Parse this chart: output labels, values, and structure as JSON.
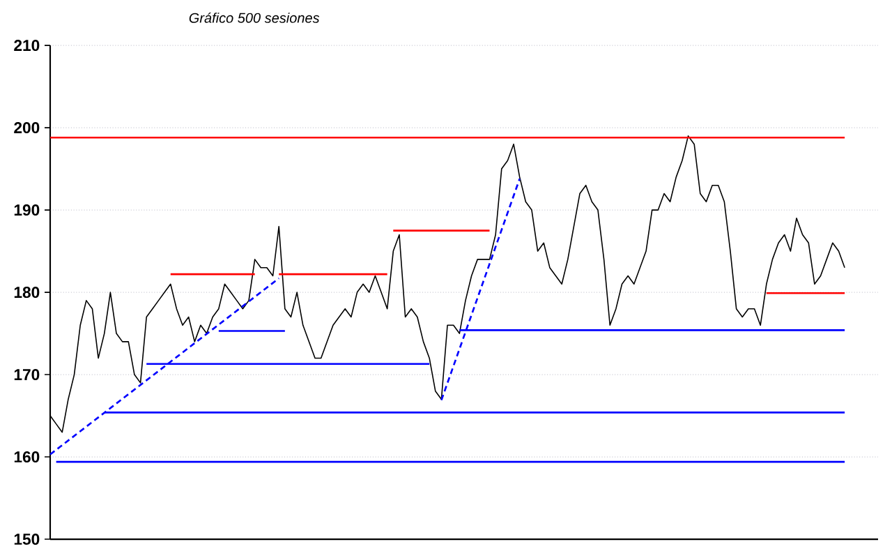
{
  "chart_data": {
    "type": "line",
    "subtitle": "Gráfico 500 sesiones",
    "ylim": [
      150,
      210
    ],
    "yticks": [
      150,
      160,
      170,
      180,
      190,
      200,
      210
    ],
    "grid": "y",
    "tick_labels": "y",
    "categories": [
      null,
      null,
      null,
      null,
      null,
      null,
      null,
      null,
      null,
      null,
      null,
      null,
      null,
      null,
      null,
      null,
      null,
      null,
      null,
      null,
      null,
      null,
      null,
      null,
      null,
      null,
      null,
      null,
      null,
      null,
      null,
      null,
      null,
      null,
      null,
      null,
      null,
      null,
      null,
      null,
      null,
      null,
      null,
      null,
      null,
      null,
      null,
      null,
      null,
      null,
      null,
      null,
      null,
      null,
      null,
      null,
      null,
      null,
      null,
      null,
      null,
      null,
      null,
      null,
      null,
      null,
      null,
      null,
      null,
      null,
      null,
      null,
      null,
      null,
      null,
      null,
      null,
      null,
      null,
      null,
      null,
      null,
      null,
      null,
      null,
      null,
      null,
      null,
      null,
      null,
      null,
      null,
      null,
      null,
      null,
      null,
      null,
      null,
      null,
      null,
      null,
      null,
      null,
      null,
      null,
      null,
      null,
      null,
      null,
      null,
      null,
      null,
      null,
      null,
      null,
      null,
      null,
      null,
      null,
      null,
      null,
      null,
      null,
      null,
      null,
      null,
      null,
      null,
      null,
      null,
      null,
      null,
      null
    ],
    "series": [
      {
        "color": "#000000",
        "values": [
          165,
          164,
          163,
          167,
          170,
          176,
          179,
          178,
          172,
          175,
          180,
          175,
          174,
          174,
          170,
          169,
          177,
          178,
          179,
          180,
          181,
          178,
          176,
          177,
          174,
          176,
          175,
          177,
          178,
          181,
          180,
          179,
          178,
          179,
          184,
          183,
          183,
          182,
          188,
          178,
          177,
          180,
          176,
          174,
          172,
          172,
          174,
          176,
          177,
          178,
          177,
          180,
          181,
          180,
          182,
          180,
          178,
          185,
          187,
          177,
          178,
          177,
          174,
          172,
          168,
          167,
          176,
          176,
          175,
          179,
          182,
          184,
          184,
          184,
          187,
          195,
          196,
          198,
          194,
          191,
          190,
          185,
          186,
          183,
          182,
          181,
          184,
          188,
          192,
          193,
          191,
          190,
          184,
          176,
          178,
          181,
          182,
          181,
          183,
          185,
          190,
          190,
          192,
          191,
          194,
          196,
          199,
          198,
          192,
          191,
          193,
          193,
          191,
          185,
          178,
          177,
          178,
          178,
          176,
          181,
          184,
          186,
          187,
          185,
          189,
          187,
          186,
          181,
          182,
          184,
          186,
          185,
          183
        ]
      },
      {
        "color": "#ff0000",
        "values": [
          198.8,
          null,
          null,
          null,
          null,
          null,
          null,
          null,
          null,
          null,
          null,
          null,
          null,
          null,
          null,
          null,
          null,
          null,
          null,
          null,
          null,
          null,
          null,
          null,
          null,
          null,
          null,
          null,
          null,
          null,
          null,
          null,
          null,
          null,
          null,
          null,
          null,
          null,
          null,
          null,
          null,
          null,
          null,
          null,
          null,
          null,
          null,
          null,
          null,
          null,
          null,
          null,
          null,
          null,
          null,
          null,
          null,
          null,
          null,
          null,
          null,
          null,
          null,
          null,
          null,
          null,
          null,
          null,
          null,
          null,
          null,
          null,
          null,
          null,
          null,
          null,
          null,
          null,
          null,
          null,
          null,
          null,
          null,
          null,
          null,
          null,
          null,
          null,
          null,
          null,
          null,
          null,
          null,
          null,
          null,
          null,
          null,
          null,
          null,
          null,
          null,
          null,
          null,
          null,
          null,
          null,
          null,
          null,
          null,
          null,
          null,
          null,
          null,
          null,
          null,
          null,
          null,
          null,
          null,
          null,
          null,
          null,
          null,
          null,
          null,
          null,
          null,
          null,
          null,
          null,
          null,
          null,
          198.8
        ]
      },
      {
        "color": "#ff0000",
        "values": [
          null,
          null,
          null,
          null,
          null,
          null,
          null,
          null,
          null,
          null,
          null,
          null,
          null,
          null,
          null,
          null,
          null,
          null,
          null,
          null,
          182.2,
          null,
          null,
          null,
          null,
          null,
          null,
          null,
          null,
          null,
          null,
          null,
          null,
          null,
          182.2,
          null,
          null,
          null,
          null,
          null,
          null,
          null,
          null,
          null,
          null,
          null,
          null,
          null,
          null,
          null,
          null,
          null,
          null,
          null,
          null,
          null,
          null,
          null,
          null,
          null,
          null,
          null,
          null,
          null,
          null,
          null,
          null,
          null,
          null,
          null,
          null,
          null,
          null,
          null,
          null,
          null,
          null,
          null,
          null,
          null,
          null,
          null,
          null,
          null,
          null,
          null,
          null,
          null,
          null,
          null,
          null,
          null,
          null,
          null,
          null,
          null,
          null,
          null,
          null,
          null,
          null,
          null,
          null,
          null,
          null,
          null,
          null,
          null,
          null,
          null,
          null,
          null,
          null,
          null,
          null,
          null,
          null,
          null,
          null,
          null,
          null,
          null,
          null,
          null,
          null,
          null,
          null,
          null,
          null,
          null,
          null,
          null,
          null
        ]
      },
      {
        "color": "#ff0000",
        "values": [
          null,
          null,
          null,
          null,
          null,
          null,
          null,
          null,
          null,
          null,
          null,
          null,
          null,
          null,
          null,
          null,
          null,
          null,
          null,
          null,
          null,
          null,
          null,
          null,
          null,
          null,
          null,
          null,
          null,
          null,
          null,
          null,
          null,
          null,
          null,
          null,
          null,
          null,
          182.2,
          null,
          null,
          null,
          null,
          null,
          null,
          null,
          null,
          null,
          null,
          null,
          null,
          null,
          null,
          null,
          null,
          null,
          182.2,
          null,
          null,
          null,
          null,
          null,
          null,
          null,
          null,
          null,
          null,
          null,
          null,
          null,
          null,
          null,
          null,
          null,
          null,
          null,
          null,
          null,
          null,
          null,
          null,
          null,
          null,
          null,
          null,
          null,
          null,
          null,
          null,
          null,
          null,
          null,
          null,
          null,
          null,
          null,
          null,
          null,
          null,
          null,
          null,
          null,
          null,
          null,
          null,
          null,
          null,
          null,
          null,
          null,
          null,
          null,
          null,
          null,
          null,
          null,
          null,
          null,
          null,
          null,
          null,
          null,
          null,
          null,
          null,
          null,
          null,
          null,
          null,
          null,
          null,
          null,
          null
        ]
      },
      {
        "color": "#ff0000",
        "values": [
          null,
          null,
          null,
          null,
          null,
          null,
          null,
          null,
          null,
          null,
          null,
          null,
          null,
          null,
          null,
          null,
          null,
          null,
          null,
          null,
          null,
          null,
          null,
          null,
          null,
          null,
          null,
          null,
          null,
          null,
          null,
          null,
          null,
          null,
          null,
          null,
          null,
          null,
          null,
          null,
          null,
          null,
          null,
          null,
          null,
          null,
          null,
          null,
          null,
          null,
          null,
          null,
          null,
          null,
          null,
          null,
          null,
          187.5,
          null,
          null,
          null,
          null,
          null,
          null,
          null,
          null,
          null,
          null,
          null,
          null,
          null,
          null,
          null,
          187.5,
          null,
          null,
          null,
          null,
          null,
          null,
          null,
          null,
          null,
          null,
          null,
          null,
          null,
          null,
          null,
          null,
          null,
          null,
          null,
          null,
          null,
          null,
          null,
          null,
          null,
          null,
          null,
          null,
          null,
          null,
          null,
          null,
          null,
          null,
          null,
          null,
          null,
          null,
          null,
          null,
          null,
          null,
          null,
          null,
          null,
          null,
          null,
          null,
          null,
          null,
          null,
          null,
          null,
          null,
          null,
          null,
          null,
          null,
          null
        ]
      },
      {
        "color": "#ff0000",
        "values": [
          null,
          null,
          null,
          null,
          null,
          null,
          null,
          null,
          null,
          null,
          null,
          null,
          null,
          null,
          null,
          null,
          null,
          null,
          null,
          null,
          null,
          null,
          null,
          null,
          null,
          null,
          null,
          null,
          null,
          null,
          null,
          null,
          null,
          null,
          null,
          null,
          null,
          null,
          null,
          null,
          null,
          null,
          null,
          null,
          null,
          null,
          null,
          null,
          null,
          null,
          null,
          null,
          null,
          null,
          null,
          null,
          null,
          null,
          null,
          null,
          null,
          null,
          null,
          null,
          null,
          null,
          null,
          null,
          null,
          null,
          null,
          null,
          null,
          null,
          null,
          null,
          null,
          null,
          null,
          null,
          null,
          null,
          null,
          null,
          null,
          null,
          null,
          null,
          null,
          null,
          null,
          null,
          null,
          null,
          null,
          null,
          null,
          null,
          null,
          null,
          null,
          null,
          null,
          null,
          null,
          null,
          null,
          null,
          null,
          null,
          null,
          null,
          null,
          null,
          null,
          null,
          null,
          null,
          null,
          179.9,
          null,
          null,
          null,
          null,
          null,
          null,
          null,
          null,
          null,
          null,
          null,
          null,
          179.9
        ]
      },
      {
        "color": "#0000ff",
        "values": [
          null,
          null,
          null,
          null,
          null,
          null,
          null,
          null,
          null,
          null,
          null,
          null,
          null,
          null,
          null,
          null,
          null,
          null,
          null,
          null,
          null,
          null,
          null,
          null,
          null,
          null,
          null,
          null,
          175.3,
          null,
          null,
          null,
          null,
          null,
          null,
          null,
          null,
          null,
          null,
          175.3,
          null,
          null,
          null,
          null,
          null,
          null,
          null,
          null,
          null,
          null,
          null,
          null,
          null,
          null,
          null,
          null,
          null,
          null,
          null,
          null,
          null,
          null,
          null,
          null,
          null,
          null,
          null,
          null,
          null,
          null,
          null,
          null,
          null,
          null,
          null,
          null,
          null,
          null,
          null,
          null,
          null,
          null,
          null,
          null,
          null,
          null,
          null,
          null,
          null,
          null,
          null,
          null,
          null,
          null,
          null,
          null,
          null,
          null,
          null,
          null,
          null,
          null,
          null,
          null,
          null,
          null,
          null,
          null,
          null,
          null,
          null,
          null,
          null,
          null,
          null,
          null,
          null,
          null,
          null,
          null,
          null,
          null,
          null,
          null,
          null,
          null,
          null,
          null,
          null,
          null,
          null,
          null,
          null
        ]
      },
      {
        "color": "#0000ff",
        "values": [
          null,
          null,
          null,
          null,
          null,
          null,
          null,
          null,
          null,
          null,
          null,
          null,
          null,
          null,
          null,
          null,
          171.3,
          null,
          null,
          null,
          null,
          null,
          null,
          null,
          null,
          null,
          null,
          null,
          null,
          null,
          null,
          null,
          null,
          null,
          null,
          null,
          null,
          null,
          null,
          null,
          null,
          null,
          null,
          null,
          null,
          null,
          null,
          null,
          null,
          null,
          null,
          null,
          null,
          null,
          null,
          null,
          null,
          null,
          null,
          null,
          null,
          null,
          null,
          171.3,
          null,
          null,
          null,
          null,
          null,
          null,
          null,
          null,
          null,
          null,
          null,
          null,
          null,
          null,
          null,
          null,
          null,
          null,
          null,
          null,
          null,
          null,
          null,
          null,
          null,
          null,
          null,
          null,
          null,
          null,
          null,
          null,
          null,
          null,
          null,
          null,
          null,
          null,
          null,
          null,
          null,
          null,
          null,
          null,
          null,
          null,
          null,
          null,
          null,
          null,
          null,
          null,
          null,
          null,
          null,
          null,
          null,
          null,
          null,
          null,
          null,
          null,
          null,
          null,
          null,
          null,
          null,
          null,
          null
        ]
      },
      {
        "color": "#0000ff",
        "values": [
          null,
          null,
          null,
          null,
          null,
          null,
          null,
          null,
          null,
          165.4,
          null,
          null,
          null,
          null,
          null,
          null,
          null,
          null,
          null,
          null,
          null,
          null,
          null,
          null,
          null,
          null,
          null,
          null,
          null,
          null,
          null,
          null,
          null,
          null,
          null,
          null,
          null,
          null,
          null,
          null,
          null,
          null,
          null,
          null,
          null,
          null,
          null,
          null,
          null,
          null,
          null,
          null,
          null,
          null,
          null,
          null,
          null,
          null,
          null,
          null,
          null,
          null,
          null,
          null,
          null,
          null,
          null,
          null,
          null,
          null,
          null,
          null,
          null,
          null,
          null,
          null,
          null,
          null,
          null,
          null,
          null,
          null,
          null,
          null,
          null,
          null,
          null,
          null,
          null,
          null,
          null,
          null,
          null,
          null,
          null,
          null,
          null,
          null,
          null,
          null,
          null,
          null,
          null,
          null,
          null,
          null,
          null,
          null,
          null,
          null,
          null,
          null,
          null,
          null,
          null,
          null,
          null,
          null,
          null,
          null,
          null,
          null,
          null,
          null,
          null,
          null,
          null,
          null,
          null,
          null,
          null,
          null,
          165.4
        ]
      },
      {
        "color": "#0000ff",
        "values": [
          null,
          159.4,
          null,
          null,
          null,
          null,
          null,
          null,
          null,
          null,
          null,
          null,
          null,
          null,
          null,
          null,
          null,
          null,
          null,
          null,
          null,
          null,
          null,
          null,
          null,
          null,
          null,
          null,
          null,
          null,
          null,
          null,
          null,
          null,
          null,
          null,
          null,
          null,
          null,
          null,
          null,
          null,
          null,
          null,
          null,
          null,
          null,
          null,
          null,
          null,
          null,
          null,
          null,
          null,
          null,
          null,
          null,
          null,
          null,
          null,
          null,
          null,
          null,
          null,
          null,
          null,
          null,
          null,
          null,
          null,
          null,
          null,
          null,
          null,
          null,
          null,
          null,
          null,
          null,
          null,
          null,
          null,
          null,
          null,
          null,
          null,
          null,
          null,
          null,
          null,
          null,
          null,
          null,
          null,
          null,
          null,
          null,
          null,
          null,
          null,
          null,
          null,
          null,
          null,
          null,
          null,
          null,
          null,
          null,
          null,
          null,
          null,
          null,
          null,
          null,
          null,
          null,
          null,
          null,
          null,
          null,
          null,
          null,
          null,
          null,
          null,
          null,
          null,
          null,
          null,
          null,
          null,
          159.4
        ]
      },
      {
        "color": "#0000ff",
        "values": [
          null,
          null,
          null,
          null,
          null,
          null,
          null,
          null,
          null,
          null,
          null,
          null,
          null,
          null,
          null,
          null,
          null,
          null,
          null,
          null,
          null,
          null,
          null,
          null,
          null,
          null,
          null,
          null,
          null,
          null,
          null,
          null,
          null,
          null,
          null,
          null,
          null,
          null,
          null,
          null,
          null,
          null,
          null,
          null,
          null,
          null,
          null,
          null,
          null,
          null,
          null,
          null,
          null,
          null,
          null,
          null,
          null,
          null,
          null,
          null,
          null,
          null,
          null,
          null,
          null,
          null,
          null,
          null,
          175.4,
          null,
          null,
          null,
          null,
          null,
          null,
          null,
          null,
          null,
          null,
          null,
          null,
          null,
          null,
          null,
          null,
          null,
          null,
          null,
          null,
          null,
          null,
          null,
          null,
          null,
          null,
          null,
          null,
          null,
          null,
          null,
          null,
          null,
          null,
          null,
          null,
          null,
          null,
          null,
          null,
          null,
          null,
          null,
          null,
          null,
          null,
          null,
          null,
          null,
          null,
          null,
          null,
          null,
          null,
          null,
          null,
          null,
          null,
          null,
          null,
          null,
          null,
          null,
          175.4
        ]
      },
      {
        "color": "#0000ff",
        "line_style": "dashed",
        "values": [
          160.3,
          null,
          null,
          null,
          null,
          null,
          null,
          null,
          null,
          null,
          null,
          null,
          null,
          null,
          null,
          null,
          null,
          null,
          null,
          null,
          null,
          null,
          null,
          null,
          null,
          null,
          null,
          null,
          null,
          null,
          null,
          null,
          null,
          null,
          null,
          null,
          null,
          null,
          181.7,
          null,
          null,
          null,
          null,
          null,
          null,
          null,
          null,
          null,
          null,
          null,
          null,
          null,
          null,
          null,
          null,
          null,
          null,
          null,
          null,
          null,
          null,
          null,
          null,
          null,
          null,
          null,
          null,
          null,
          null,
          null,
          null,
          null,
          null,
          null,
          null,
          null,
          null,
          null,
          null,
          null,
          null,
          null,
          null,
          null,
          null,
          null,
          null,
          null,
          null,
          null,
          null,
          null,
          null,
          null,
          null,
          null,
          null,
          null,
          null,
          null,
          null,
          null,
          null,
          null,
          null,
          null,
          null,
          null,
          null,
          null,
          null,
          null,
          null,
          null,
          null,
          null,
          null,
          null,
          null,
          null,
          null,
          null,
          null,
          null,
          null,
          null,
          null,
          null,
          null,
          null,
          null,
          null,
          null
        ]
      },
      {
        "color": "#0000ff",
        "line_style": "dashed",
        "values": [
          null,
          null,
          null,
          null,
          null,
          null,
          null,
          null,
          null,
          null,
          null,
          null,
          null,
          null,
          null,
          null,
          null,
          null,
          null,
          null,
          null,
          null,
          null,
          null,
          null,
          null,
          null,
          null,
          null,
          null,
          null,
          null,
          null,
          null,
          null,
          null,
          null,
          null,
          null,
          null,
          null,
          null,
          null,
          null,
          null,
          null,
          null,
          null,
          null,
          null,
          null,
          null,
          null,
          null,
          null,
          null,
          null,
          null,
          null,
          null,
          null,
          null,
          null,
          null,
          null,
          166.9,
          null,
          null,
          null,
          null,
          null,
          null,
          null,
          null,
          null,
          null,
          null,
          null,
          193.8,
          null,
          null,
          null,
          null,
          null,
          null,
          null,
          null,
          null,
          null,
          null,
          null,
          null,
          null,
          null,
          null,
          null,
          null,
          null,
          null,
          null,
          null,
          null,
          null,
          null,
          null,
          null,
          null,
          null,
          null,
          null,
          null,
          null,
          null,
          null,
          null,
          null,
          null,
          null,
          null,
          null,
          null,
          null,
          null,
          null,
          null,
          null,
          null,
          null,
          null,
          null,
          null,
          null,
          null
        ]
      }
    ]
  }
}
